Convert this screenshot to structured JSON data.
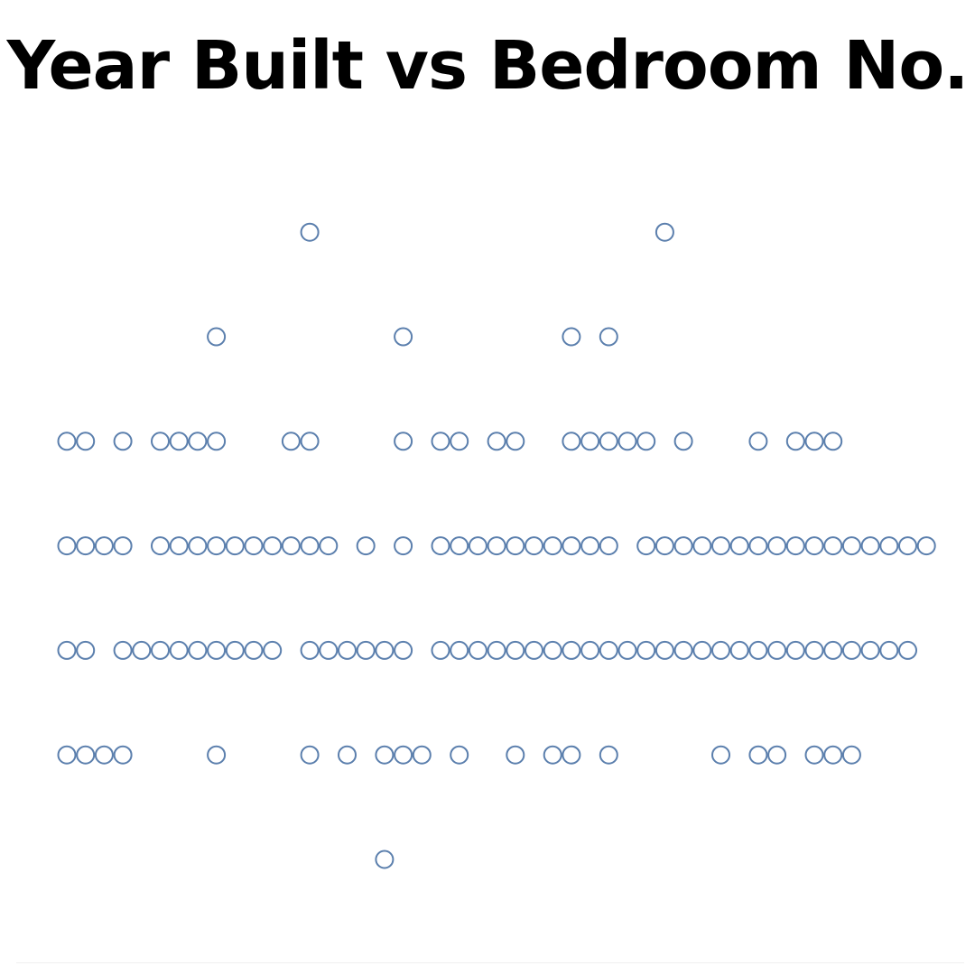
{
  "title": "Year Built vs Bedroom No.",
  "chart_data": {
    "type": "scatter",
    "title": "Year Built vs Bedroom No.",
    "xlabel": "",
    "ylabel": "",
    "marker": "hollow-circle",
    "marker_color": "#5b7fad",
    "grid": false,
    "rows": [
      {
        "level": 1,
        "x_slots": [
          17
        ]
      },
      {
        "level": 2,
        "x_slots": [
          0,
          1,
          2,
          3,
          8,
          13,
          15,
          17,
          18,
          19,
          21,
          24,
          26,
          27,
          29,
          35,
          37,
          38,
          40,
          41,
          42
        ]
      },
      {
        "level": 3,
        "x_slots": [
          0,
          1,
          3,
          4,
          5,
          6,
          7,
          8,
          9,
          10,
          11,
          13,
          14,
          15,
          16,
          17,
          18,
          20,
          21,
          22,
          23,
          24,
          25,
          26,
          27,
          28,
          29,
          30,
          31,
          32,
          33,
          34,
          35,
          36,
          37,
          38,
          39,
          40,
          41,
          42,
          43,
          44,
          45
        ]
      },
      {
        "level": 4,
        "x_slots": [
          0,
          1,
          2,
          3,
          5,
          6,
          7,
          8,
          9,
          10,
          11,
          12,
          13,
          14,
          16,
          18,
          20,
          21,
          22,
          23,
          24,
          25,
          26,
          27,
          28,
          29,
          31,
          32,
          33,
          34,
          35,
          36,
          37,
          38,
          39,
          40,
          41,
          42,
          43,
          44,
          45,
          46
        ]
      },
      {
        "level": 5,
        "x_slots": [
          0,
          1,
          3,
          5,
          6,
          7,
          8,
          12,
          13,
          18,
          20,
          21,
          23,
          24,
          27,
          28,
          29,
          30,
          31,
          33,
          37,
          39,
          40,
          41
        ]
      },
      {
        "level": 6,
        "x_slots": [
          8,
          18,
          27,
          29
        ]
      },
      {
        "level": 7,
        "x_slots": [
          13,
          32
        ]
      }
    ]
  }
}
